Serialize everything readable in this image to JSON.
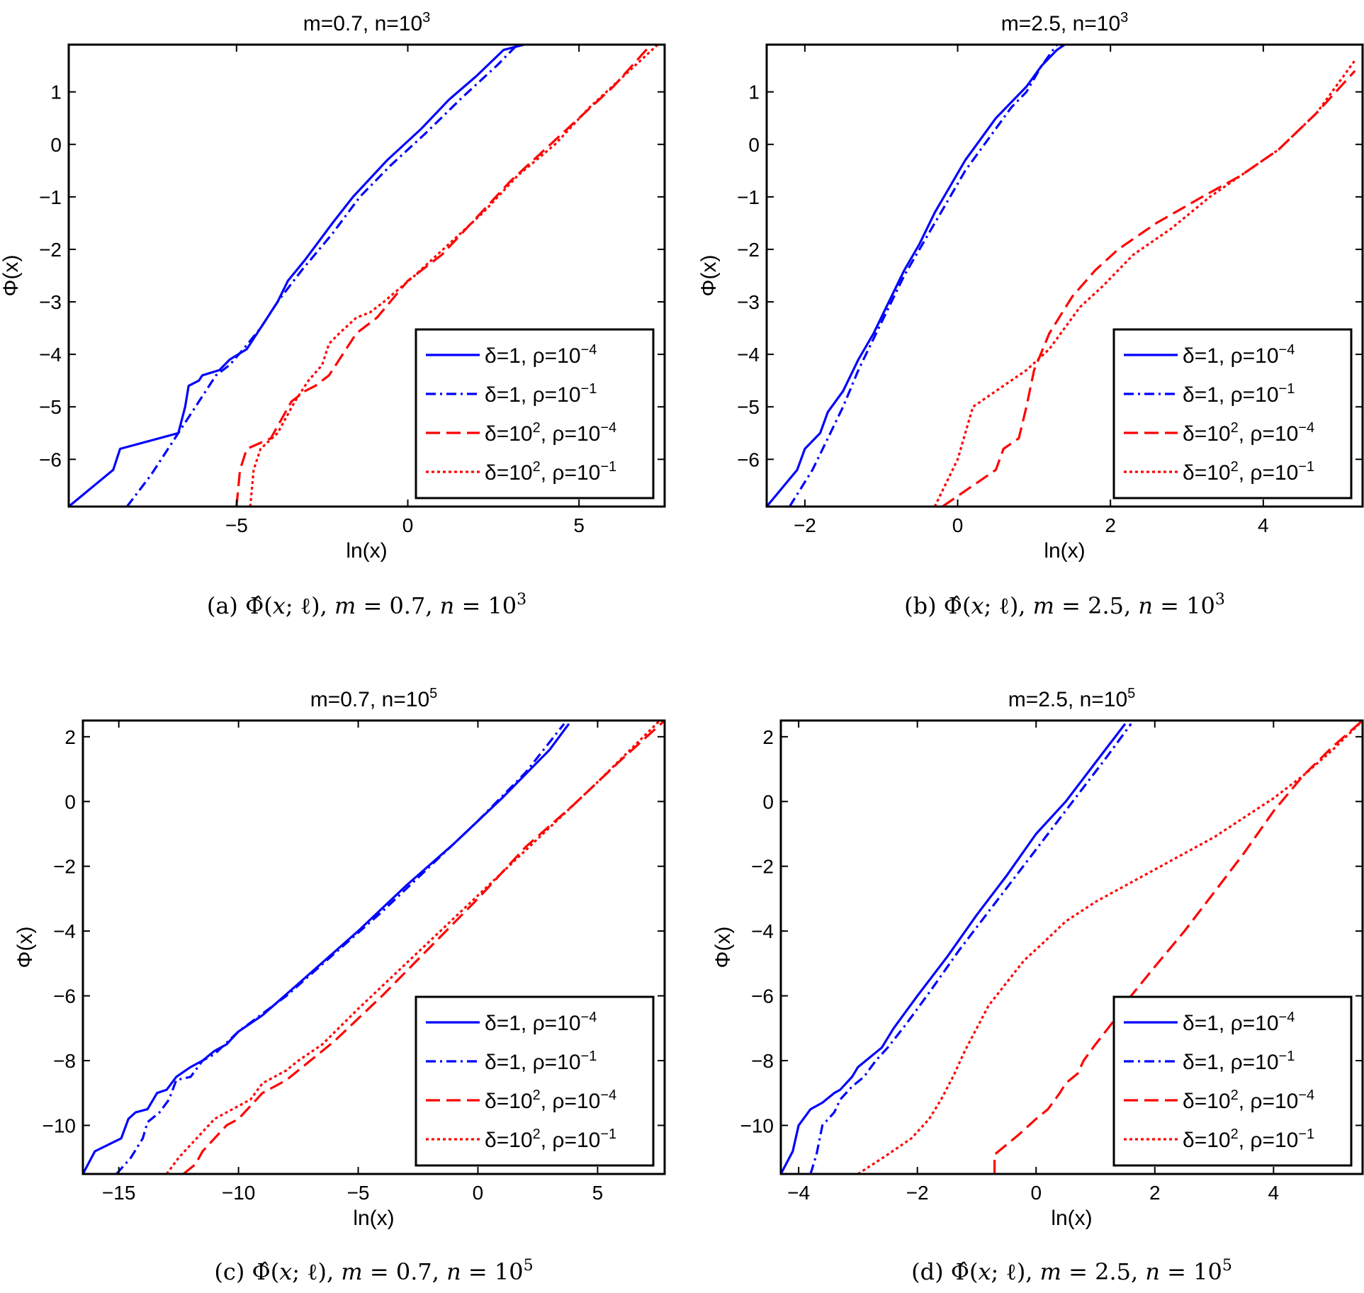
{
  "figure": {
    "background": "#ffffff"
  },
  "colors": {
    "blue": "#0000ff",
    "red": "#ff0000",
    "axis": "#000000"
  },
  "chart_data": [
    {
      "type": "line",
      "title": "m=0.7, n=10",
      "title_exp": "3",
      "xlabel": "ln(x)",
      "ylabel": "Φ(x)",
      "xlim": [
        -9.9,
        7.5
      ],
      "ylim": [
        -6.9,
        1.9
      ],
      "xticks": [
        -5,
        0,
        5
      ],
      "yticks": [
        -6,
        -5,
        -4,
        -3,
        -2,
        -1,
        0,
        1
      ],
      "caption_prefix": "(a)",
      "caption_m": "0.7",
      "caption_n_exp": "3",
      "legend": [
        {
          "text": "δ=1, ρ=10",
          "exp": "−4",
          "color": "#0000ff",
          "dash": "solid"
        },
        {
          "text": "δ=1, ρ=10",
          "exp": "−1",
          "color": "#0000ff",
          "dash": "dashdot"
        },
        {
          "text": "δ=10",
          "mid_exp": "2",
          "tail": ", ρ=10",
          "exp": "−4",
          "color": "#ff0000",
          "dash": "dashed"
        },
        {
          "text": "δ=10",
          "mid_exp": "2",
          "tail": ", ρ=10",
          "exp": "−1",
          "color": "#ff0000",
          "dash": "dotted"
        }
      ],
      "series": [
        {
          "name": "δ=1, ρ=10^-4",
          "color": "#0000ff",
          "dash": "solid",
          "x": [
            -9.9,
            -8.6,
            -8.4,
            -6.7,
            -6.5,
            -6.4,
            -6.1,
            -6.0,
            -5.5,
            -5.2,
            -4.7,
            -4.4,
            -4.2,
            -3.8,
            -3.5,
            -3.0,
            -2.2,
            -1.6,
            -0.6,
            0.4,
            1.2,
            2.0,
            2.8,
            3.4
          ],
          "y": [
            -6.9,
            -6.2,
            -5.8,
            -5.5,
            -5.0,
            -4.6,
            -4.5,
            -4.4,
            -4.3,
            -4.1,
            -3.9,
            -3.6,
            -3.4,
            -3.0,
            -2.6,
            -2.2,
            -1.5,
            -1.0,
            -0.3,
            0.3,
            0.85,
            1.3,
            1.8,
            1.9
          ]
        },
        {
          "name": "δ=1, ρ=10^-1",
          "color": "#0000ff",
          "dash": "dashdot",
          "x": [
            -8.2,
            -7.5,
            -6.8,
            -6.5,
            -6.1,
            -5.6,
            -5.2,
            -4.8,
            -4.3,
            -3.8,
            -3.1,
            -2.2,
            -1.4,
            -0.5,
            0.5,
            1.6,
            2.6,
            3.2
          ],
          "y": [
            -6.9,
            -6.3,
            -5.6,
            -5.3,
            -4.9,
            -4.4,
            -4.2,
            -3.9,
            -3.5,
            -3.0,
            -2.4,
            -1.7,
            -1.0,
            -0.4,
            0.2,
            0.9,
            1.5,
            1.9
          ]
        },
        {
          "name": "δ=10^2, ρ=10^-4",
          "color": "#ff0000",
          "dash": "dashed",
          "x": [
            -5.0,
            -4.9,
            -4.7,
            -4.0,
            -3.4,
            -3.0,
            -2.7,
            -2.3,
            -2.1,
            -1.8,
            -1.5,
            -0.9,
            0.0,
            1.0,
            2.0,
            3.0,
            4.0,
            5.0,
            6.0,
            7.1
          ],
          "y": [
            -6.9,
            -6.2,
            -5.8,
            -5.6,
            -4.9,
            -4.7,
            -4.6,
            -4.4,
            -4.2,
            -3.9,
            -3.6,
            -3.3,
            -2.6,
            -2.1,
            -1.4,
            -0.7,
            -0.1,
            0.5,
            1.1,
            1.9
          ]
        },
        {
          "name": "δ=10^2, ρ=10^-1",
          "color": "#ff0000",
          "dash": "dotted",
          "x": [
            -4.6,
            -4.5,
            -4.3,
            -3.8,
            -3.3,
            -2.9,
            -2.5,
            -2.3,
            -2.0,
            -1.5,
            -1.1,
            -0.7,
            0.2,
            1.2,
            2.2,
            3.2,
            4.3,
            5.3,
            6.3,
            7.3
          ],
          "y": [
            -6.9,
            -6.2,
            -5.8,
            -5.5,
            -4.9,
            -4.5,
            -4.2,
            -3.8,
            -3.6,
            -3.3,
            -3.2,
            -3.0,
            -2.5,
            -1.9,
            -1.3,
            -0.6,
            0.0,
            0.7,
            1.3,
            1.9
          ]
        }
      ]
    },
    {
      "type": "line",
      "title": "m=2.5, n=10",
      "title_exp": "3",
      "xlabel": "ln(x)",
      "ylabel": "Φ(x)",
      "xlim": [
        -2.5,
        5.3
      ],
      "ylim": [
        -6.9,
        1.9
      ],
      "xticks": [
        -2,
        0,
        2,
        4
      ],
      "yticks": [
        -6,
        -5,
        -4,
        -3,
        -2,
        -1,
        0,
        1
      ],
      "caption_prefix": "(b)",
      "caption_m": "2.5",
      "caption_n_exp": "3",
      "legend": [
        {
          "text": "δ=1, ρ=10",
          "exp": "−4",
          "color": "#0000ff",
          "dash": "solid"
        },
        {
          "text": "δ=1, ρ=10",
          "exp": "−1",
          "color": "#0000ff",
          "dash": "dashdot"
        },
        {
          "text": "δ=10",
          "mid_exp": "2",
          "tail": ", ρ=10",
          "exp": "−4",
          "color": "#ff0000",
          "dash": "dashed"
        },
        {
          "text": "δ=10",
          "mid_exp": "2",
          "tail": ", ρ=10",
          "exp": "−1",
          "color": "#ff0000",
          "dash": "dotted"
        }
      ],
      "series": [
        {
          "name": "δ=1, ρ=10^-4",
          "color": "#0000ff",
          "dash": "solid",
          "x": [
            -2.5,
            -2.1,
            -2.0,
            -1.8,
            -1.7,
            -1.5,
            -1.4,
            -1.3,
            -1.1,
            -0.9,
            -0.7,
            -0.5,
            -0.3,
            -0.1,
            0.1,
            0.3,
            0.5,
            0.7,
            0.9,
            1.1,
            1.3,
            1.4
          ],
          "y": [
            -6.9,
            -6.2,
            -5.8,
            -5.5,
            -5.1,
            -4.7,
            -4.4,
            -4.1,
            -3.6,
            -3.0,
            -2.4,
            -1.9,
            -1.3,
            -0.8,
            -0.3,
            0.1,
            0.5,
            0.8,
            1.1,
            1.5,
            1.8,
            1.9
          ]
        },
        {
          "name": "δ=1, ρ=10^-1",
          "color": "#0000ff",
          "dash": "dashdot",
          "x": [
            -2.2,
            -1.9,
            -1.7,
            -1.5,
            -1.3,
            -1.1,
            -0.9,
            -0.7,
            -0.5,
            -0.3,
            -0.1,
            0.1,
            0.3,
            0.5,
            0.7,
            0.9,
            1.1,
            1.3
          ],
          "y": [
            -6.9,
            -6.2,
            -5.6,
            -5.0,
            -4.3,
            -3.7,
            -3.1,
            -2.5,
            -2.0,
            -1.5,
            -1.0,
            -0.5,
            -0.1,
            0.3,
            0.7,
            1.0,
            1.5,
            1.9
          ]
        },
        {
          "name": "δ=10^2, ρ=10^-4",
          "color": "#ff0000",
          "dash": "dashed",
          "x": [
            -0.2,
            0.5,
            0.6,
            0.8,
            0.9,
            1.0,
            1.2,
            1.5,
            1.8,
            2.1,
            2.6,
            3.2,
            3.7,
            4.2,
            4.7,
            5.2
          ],
          "y": [
            -6.9,
            -6.2,
            -5.8,
            -5.6,
            -5.0,
            -4.3,
            -3.6,
            -2.9,
            -2.4,
            -2.0,
            -1.5,
            -1.0,
            -0.6,
            -0.1,
            0.6,
            1.4
          ]
        },
        {
          "name": "δ=10^2, ρ=10^-1",
          "color": "#ff0000",
          "dash": "dotted",
          "x": [
            -0.3,
            0.0,
            0.1,
            0.2,
            0.6,
            0.9,
            1.2,
            1.4,
            1.6,
            1.9,
            2.3,
            2.8,
            3.3,
            3.7,
            4.2,
            4.7,
            5.2
          ],
          "y": [
            -6.9,
            -6.0,
            -5.5,
            -5.0,
            -4.6,
            -4.3,
            -3.9,
            -3.5,
            -3.1,
            -2.7,
            -2.1,
            -1.6,
            -1.0,
            -0.6,
            -0.1,
            0.6,
            1.6
          ]
        }
      ]
    },
    {
      "type": "line",
      "title": "m=0.7, n=10",
      "title_exp": "5",
      "xlabel": "ln(x)",
      "ylabel": "Φ(x)",
      "xlim": [
        -16.5,
        7.8
      ],
      "ylim": [
        -11.5,
        2.5
      ],
      "xticks": [
        -15,
        -10,
        -5,
        0,
        5
      ],
      "yticks": [
        -10,
        -8,
        -6,
        -4,
        -2,
        0,
        2
      ],
      "caption_prefix": "(c)",
      "caption_m": "0.7",
      "caption_n_exp": "5",
      "legend": [
        {
          "text": "δ=1, ρ=10",
          "exp": "−4",
          "color": "#0000ff",
          "dash": "solid"
        },
        {
          "text": "δ=1, ρ=10",
          "exp": "−1",
          "color": "#0000ff",
          "dash": "dashdot"
        },
        {
          "text": "δ=10",
          "mid_exp": "2",
          "tail": ", ρ=10",
          "exp": "−4",
          "color": "#ff0000",
          "dash": "dashed"
        },
        {
          "text": "δ=10",
          "mid_exp": "2",
          "tail": ", ρ=10",
          "exp": "−1",
          "color": "#ff0000",
          "dash": "dotted"
        }
      ],
      "series": [
        {
          "name": "δ=1, ρ=10^-4",
          "color": "#0000ff",
          "dash": "solid",
          "x": [
            -16.5,
            -16.0,
            -14.9,
            -14.6,
            -14.3,
            -13.8,
            -13.4,
            -13.0,
            -12.6,
            -12.0,
            -11.5,
            -11.0,
            -10.5,
            -10.0,
            -9.0,
            -7.0,
            -5.0,
            -3.0,
            -1.0,
            1.0,
            3.0,
            3.8
          ],
          "y": [
            -11.5,
            -10.8,
            -10.4,
            -9.8,
            -9.6,
            -9.5,
            -9.0,
            -8.9,
            -8.5,
            -8.2,
            -8.0,
            -7.7,
            -7.5,
            -7.1,
            -6.6,
            -5.3,
            -4.0,
            -2.6,
            -1.3,
            0.1,
            1.6,
            2.4
          ]
        },
        {
          "name": "δ=1, ρ=10^-1",
          "color": "#0000ff",
          "dash": "dashdot",
          "x": [
            -15.1,
            -14.5,
            -14.0,
            -13.8,
            -13.3,
            -12.9,
            -12.6,
            -12.0,
            -11.5,
            -11.0,
            -10.0,
            -8.0,
            -6.0,
            -4.0,
            -2.0,
            0.0,
            2.0,
            3.6
          ],
          "y": [
            -11.5,
            -11.0,
            -10.4,
            -9.9,
            -9.6,
            -9.2,
            -8.6,
            -8.5,
            -8.0,
            -7.8,
            -7.1,
            -6.0,
            -4.7,
            -3.4,
            -2.0,
            -0.6,
            0.9,
            2.4
          ]
        },
        {
          "name": "δ=10^2, ρ=10^-4",
          "color": "#ff0000",
          "dash": "dashed",
          "x": [
            -12.3,
            -11.8,
            -11.5,
            -11.0,
            -10.5,
            -10.0,
            -9.5,
            -9.0,
            -8.5,
            -8.0,
            -7.5,
            -7.0,
            -6.0,
            -4.0,
            -2.0,
            0.0,
            2.0,
            4.0,
            6.0,
            7.8
          ],
          "y": [
            -11.5,
            -11.2,
            -10.8,
            -10.4,
            -10.0,
            -9.8,
            -9.4,
            -9.0,
            -8.8,
            -8.6,
            -8.3,
            -8.0,
            -7.4,
            -6.0,
            -4.5,
            -3.0,
            -1.4,
            -0.1,
            1.3,
            2.5
          ]
        },
        {
          "name": "δ=10^2, ρ=10^-1",
          "color": "#ff0000",
          "dash": "dotted",
          "x": [
            -13.0,
            -12.5,
            -12.0,
            -11.5,
            -11.0,
            -10.5,
            -10.0,
            -9.5,
            -9.0,
            -8.5,
            -8.0,
            -7.5,
            -6.5,
            -5.0,
            -3.0,
            -1.0,
            1.0,
            3.0,
            5.0,
            7.6
          ],
          "y": [
            -11.5,
            -11.0,
            -10.6,
            -10.2,
            -9.8,
            -9.6,
            -9.4,
            -9.2,
            -8.7,
            -8.5,
            -8.3,
            -8.0,
            -7.5,
            -6.4,
            -5.0,
            -3.6,
            -2.2,
            -0.8,
            0.6,
            2.5
          ]
        }
      ]
    },
    {
      "type": "line",
      "title": "m=2.5, n=10",
      "title_exp": "5",
      "xlabel": "ln(x)",
      "ylabel": "Φ(x)",
      "xlim": [
        -4.3,
        5.5
      ],
      "ylim": [
        -11.5,
        2.5
      ],
      "xticks": [
        -4,
        -2,
        0,
        2,
        4
      ],
      "yticks": [
        -10,
        -8,
        -6,
        -4,
        -2,
        0,
        2
      ],
      "caption_prefix": "(d)",
      "caption_m": "2.5",
      "caption_n_exp": "5",
      "legend": [
        {
          "text": "δ=1, ρ=10",
          "exp": "−4",
          "color": "#0000ff",
          "dash": "solid"
        },
        {
          "text": "δ=1, ρ=10",
          "exp": "−1",
          "color": "#0000ff",
          "dash": "dashdot"
        },
        {
          "text": "δ=10",
          "mid_exp": "2",
          "tail": ", ρ=10",
          "exp": "−4",
          "color": "#ff0000",
          "dash": "dashed"
        },
        {
          "text": "δ=10",
          "mid_exp": "2",
          "tail": ", ρ=10",
          "exp": "−1",
          "color": "#ff0000",
          "dash": "dotted"
        }
      ],
      "series": [
        {
          "name": "δ=1, ρ=10^-4",
          "color": "#0000ff",
          "dash": "solid",
          "x": [
            -4.3,
            -4.1,
            -4.0,
            -3.8,
            -3.6,
            -3.4,
            -3.3,
            -3.1,
            -3.0,
            -2.8,
            -2.6,
            -2.4,
            -2.0,
            -1.5,
            -1.0,
            -0.5,
            0.0,
            0.5,
            1.0,
            1.5
          ],
          "y": [
            -11.5,
            -10.8,
            -10.0,
            -9.5,
            -9.3,
            -9.0,
            -8.9,
            -8.5,
            -8.2,
            -7.9,
            -7.6,
            -7.0,
            -6.0,
            -4.8,
            -3.5,
            -2.3,
            -1.0,
            0.0,
            1.2,
            2.4
          ]
        },
        {
          "name": "δ=1, ρ=10^-1",
          "color": "#0000ff",
          "dash": "dashdot",
          "x": [
            -3.8,
            -3.7,
            -3.6,
            -3.4,
            -3.3,
            -3.1,
            -2.9,
            -2.7,
            -2.5,
            -2.2,
            -1.8,
            -1.3,
            -0.8,
            -0.3,
            0.2,
            0.7,
            1.2,
            1.6
          ],
          "y": [
            -11.5,
            -10.9,
            -10.0,
            -9.6,
            -9.2,
            -8.8,
            -8.5,
            -8.0,
            -7.6,
            -6.9,
            -5.9,
            -4.6,
            -3.4,
            -2.2,
            -1.0,
            0.2,
            1.4,
            2.4
          ]
        },
        {
          "name": "δ=10^2, ρ=10^-4",
          "color": "#ff0000",
          "dash": "dashed",
          "x": [
            -0.7,
            -0.7,
            -0.3,
            0.0,
            0.2,
            0.4,
            0.5,
            0.7,
            0.8,
            1.0,
            1.3,
            1.6,
            2.0,
            2.5,
            3.0,
            3.5,
            4.0,
            4.5,
            5.0,
            5.5
          ],
          "y": [
            -11.5,
            -10.9,
            -10.3,
            -9.8,
            -9.5,
            -9.0,
            -8.7,
            -8.4,
            -8.0,
            -7.5,
            -6.8,
            -6.0,
            -5.1,
            -4.0,
            -2.8,
            -1.6,
            -0.3,
            0.8,
            1.7,
            2.5
          ]
        },
        {
          "name": "δ=10^2, ρ=10^-1",
          "color": "#ff0000",
          "dash": "dotted",
          "x": [
            -3.0,
            -2.5,
            -2.1,
            -1.8,
            -1.6,
            -1.4,
            -1.2,
            -1.0,
            -0.8,
            -0.5,
            -0.2,
            0.1,
            0.5,
            1.0,
            1.5,
            2.0,
            2.5,
            3.0,
            3.5,
            4.0,
            4.5,
            5.0,
            5.5
          ],
          "y": [
            -11.5,
            -10.9,
            -10.4,
            -9.8,
            -9.2,
            -8.5,
            -7.7,
            -7.0,
            -6.3,
            -5.6,
            -4.9,
            -4.4,
            -3.7,
            -3.1,
            -2.6,
            -2.1,
            -1.6,
            -1.1,
            -0.5,
            0.1,
            0.8,
            1.6,
            2.5
          ]
        }
      ]
    }
  ]
}
